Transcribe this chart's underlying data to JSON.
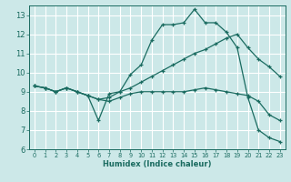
{
  "xlabel": "Humidex (Indice chaleur)",
  "bg_color": "#cce8e8",
  "grid_color": "#ffffff",
  "line_color": "#1a6b60",
  "xlim": [
    -0.5,
    23.5
  ],
  "ylim": [
    6,
    13.5
  ],
  "xticks": [
    0,
    1,
    2,
    3,
    4,
    5,
    6,
    7,
    8,
    9,
    10,
    11,
    12,
    13,
    14,
    15,
    16,
    17,
    18,
    19,
    20,
    21,
    22,
    23
  ],
  "yticks": [
    6,
    7,
    8,
    9,
    10,
    11,
    12,
    13
  ],
  "line1_x": [
    0,
    1,
    2,
    3,
    4,
    5,
    6,
    7,
    8,
    9,
    10,
    11,
    12,
    13,
    14,
    15,
    16,
    17,
    18,
    19,
    20,
    21,
    22,
    23
  ],
  "line1_y": [
    9.3,
    9.2,
    9.0,
    9.2,
    9.0,
    8.8,
    7.5,
    8.9,
    9.0,
    9.9,
    10.4,
    11.7,
    12.5,
    12.5,
    12.6,
    13.3,
    12.6,
    12.6,
    12.1,
    11.3,
    8.7,
    7.0,
    6.6,
    6.4
  ],
  "line2_x": [
    0,
    1,
    2,
    3,
    4,
    5,
    6,
    7,
    8,
    9,
    10,
    11,
    12,
    13,
    14,
    15,
    16,
    17,
    18,
    19,
    20,
    21,
    22,
    23
  ],
  "line2_y": [
    9.3,
    9.2,
    9.0,
    9.2,
    9.0,
    8.8,
    8.6,
    8.7,
    9.0,
    9.2,
    9.5,
    9.8,
    10.1,
    10.4,
    10.7,
    11.0,
    11.2,
    11.5,
    11.8,
    12.0,
    11.3,
    10.7,
    10.3,
    9.8
  ],
  "line3_x": [
    0,
    1,
    2,
    3,
    4,
    5,
    6,
    7,
    8,
    9,
    10,
    11,
    12,
    13,
    14,
    15,
    16,
    17,
    18,
    19,
    20,
    21,
    22,
    23
  ],
  "line3_y": [
    9.3,
    9.2,
    9.0,
    9.2,
    9.0,
    8.8,
    8.6,
    8.5,
    8.7,
    8.9,
    9.0,
    9.0,
    9.0,
    9.0,
    9.0,
    9.1,
    9.2,
    9.1,
    9.0,
    8.9,
    8.8,
    8.5,
    7.8,
    7.5
  ]
}
